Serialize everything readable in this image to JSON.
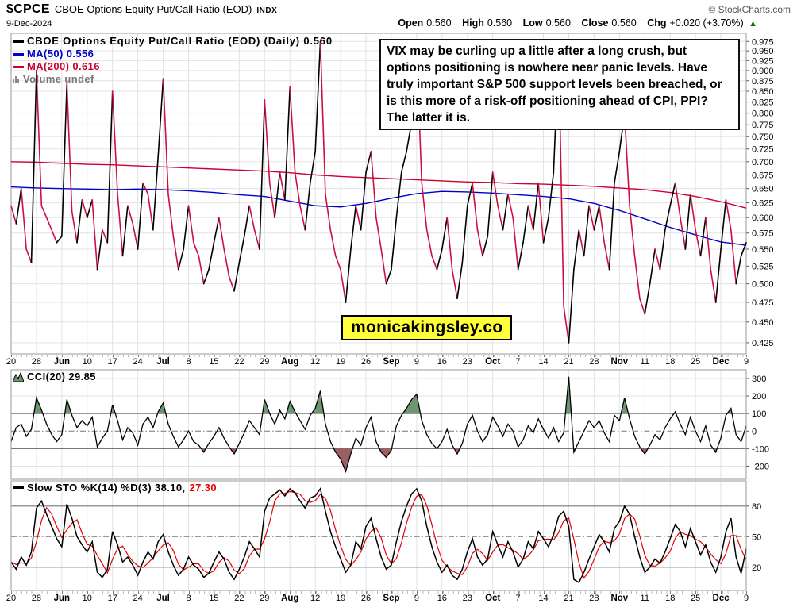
{
  "header": {
    "symbol": "$CPCE",
    "title": "CBOE Options Equity Put/Call Ratio (EOD)",
    "exchange": "INDX",
    "date": "9-Dec-2024",
    "copyright": "© StockCharts.com",
    "quote": {
      "open_label": "Open",
      "open_value": "0.560",
      "high_label": "High",
      "high_value": "0.560",
      "low_label": "Low",
      "low_value": "0.560",
      "close_label": "Close",
      "close_value": "0.560",
      "chg_label": "Chg",
      "chg_value": "+0.020 (+3.70%)",
      "arrow": "▲"
    }
  },
  "main_panel": {
    "legend_price": "CBOE Options Equity Put/Call Ratio (EOD) (Daily) 0.560",
    "legend_ma50": "MA(50) 0.556",
    "legend_ma200": "MA(200) 0.616",
    "legend_volume": "Volume undef",
    "annotation": "VIX may be curling up a little after a long crush, but options positioning is nowhere near panic levels. Have truly important S&P 500 support levels been breached, or is this more of a risk-off positioning ahead of CPI, PPI? The latter it is.",
    "watermark": "monicakingsley.co"
  },
  "cci_panel": {
    "legend": "CCI(20) 29.85"
  },
  "sto_panel": {
    "legend_black": "Slow STO %K(14) %D(3) 38.10,",
    "legend_red": "27.30"
  },
  "chart_data": [
    {
      "type": "line",
      "title": "CBOE Options Equity Put/Call Ratio (EOD) (Daily)",
      "last": 0.56,
      "scale": "log",
      "ylim": [
        0.425,
        0.975
      ],
      "ytick_step": 0.025,
      "x_labels": [
        "20",
        "28",
        "Jun",
        "10",
        "17",
        "24",
        "Jul",
        "8",
        "15",
        "22",
        "29",
        "Aug",
        "12",
        "19",
        "26",
        "Sep",
        "9",
        "16",
        "23",
        "Oct",
        "7",
        "14",
        "21",
        "28",
        "Nov",
        "11",
        "18",
        "25",
        "Dec",
        "9"
      ],
      "colors": {
        "up": "#000000",
        "down": "#cc0f3f",
        "ma50": "#0000cc",
        "ma200": "#cc0033",
        "grid": "#e3e3e3",
        "border": "#999999"
      },
      "price": [
        0.62,
        0.59,
        0.65,
        0.55,
        0.53,
        0.9,
        0.62,
        0.6,
        0.58,
        0.56,
        0.57,
        0.87,
        0.61,
        0.56,
        0.63,
        0.6,
        0.63,
        0.52,
        0.58,
        0.56,
        0.85,
        0.64,
        0.54,
        0.62,
        0.59,
        0.55,
        0.66,
        0.64,
        0.58,
        0.71,
        0.88,
        0.64,
        0.57,
        0.52,
        0.55,
        0.62,
        0.56,
        0.54,
        0.5,
        0.52,
        0.56,
        0.6,
        0.55,
        0.51,
        0.49,
        0.53,
        0.57,
        0.62,
        0.58,
        0.55,
        0.83,
        0.66,
        0.6,
        0.68,
        0.63,
        0.86,
        0.68,
        0.62,
        0.58,
        0.66,
        0.72,
        0.975,
        0.64,
        0.58,
        0.54,
        0.52,
        0.475,
        0.55,
        0.62,
        0.58,
        0.68,
        0.72,
        0.6,
        0.55,
        0.5,
        0.52,
        0.6,
        0.68,
        0.72,
        0.78,
        0.95,
        0.66,
        0.58,
        0.54,
        0.52,
        0.55,
        0.6,
        0.52,
        0.48,
        0.53,
        0.62,
        0.66,
        0.58,
        0.54,
        0.57,
        0.68,
        0.62,
        0.58,
        0.64,
        0.6,
        0.52,
        0.56,
        0.62,
        0.58,
        0.66,
        0.56,
        0.6,
        0.68,
        0.95,
        0.47,
        0.425,
        0.52,
        0.58,
        0.54,
        0.62,
        0.58,
        0.62,
        0.56,
        0.52,
        0.66,
        0.72,
        0.8,
        0.62,
        0.54,
        0.48,
        0.46,
        0.5,
        0.55,
        0.52,
        0.58,
        0.62,
        0.66,
        0.6,
        0.55,
        0.64,
        0.58,
        0.54,
        0.6,
        0.52,
        0.475,
        0.55,
        0.63,
        0.58,
        0.5,
        0.54,
        0.56
      ],
      "ma50_anchors": {
        "i": [
          0,
          5,
          10,
          15,
          20,
          25,
          30,
          35,
          40,
          45,
          50,
          55,
          60,
          65,
          70,
          75,
          80,
          85,
          90,
          95,
          100,
          105,
          110,
          115,
          120,
          125,
          130,
          135,
          140,
          145
        ],
        "v": [
          0.653,
          0.651,
          0.65,
          0.649,
          0.648,
          0.649,
          0.648,
          0.646,
          0.643,
          0.639,
          0.636,
          0.628,
          0.62,
          0.618,
          0.624,
          0.633,
          0.641,
          0.645,
          0.644,
          0.642,
          0.639,
          0.636,
          0.632,
          0.624,
          0.612,
          0.598,
          0.584,
          0.572,
          0.561,
          0.556
        ]
      },
      "ma200_anchors": {
        "i": [
          0,
          5,
          10,
          15,
          20,
          25,
          30,
          35,
          40,
          45,
          50,
          55,
          60,
          65,
          70,
          75,
          80,
          85,
          90,
          95,
          100,
          105,
          110,
          115,
          120,
          125,
          130,
          135,
          140,
          145
        ],
        "v": [
          0.7,
          0.699,
          0.697,
          0.695,
          0.694,
          0.692,
          0.69,
          0.688,
          0.686,
          0.684,
          0.682,
          0.679,
          0.675,
          0.672,
          0.67,
          0.668,
          0.666,
          0.664,
          0.662,
          0.661,
          0.659,
          0.658,
          0.656,
          0.654,
          0.651,
          0.648,
          0.643,
          0.636,
          0.627,
          0.616
        ]
      }
    },
    {
      "type": "line",
      "title": "CCI(20)",
      "last": 29.85,
      "ylim": [
        -270,
        345
      ],
      "yticks": [
        300,
        200,
        100,
        0,
        -100,
        -200
      ],
      "overbought": 100,
      "oversold": -100,
      "colors": {
        "line": "#000000",
        "fill_above": "#6d9770",
        "fill_below": "#9c5f63",
        "grid": "#e3e3e3",
        "threshold": "#777777"
      },
      "values": [
        -60,
        20,
        40,
        -30,
        10,
        190,
        120,
        40,
        -20,
        -60,
        -20,
        180,
        90,
        20,
        60,
        30,
        80,
        -90,
        -40,
        0,
        150,
        60,
        -50,
        20,
        -10,
        -80,
        40,
        80,
        20,
        110,
        160,
        40,
        -30,
        -90,
        -50,
        0,
        -60,
        -80,
        -120,
        -70,
        -30,
        20,
        -40,
        -90,
        -130,
        -70,
        -10,
        60,
        20,
        -20,
        180,
        100,
        40,
        120,
        70,
        170,
        110,
        60,
        10,
        90,
        130,
        230,
        40,
        -60,
        -120,
        -160,
        -230,
        -130,
        -40,
        -80,
        20,
        80,
        -60,
        -120,
        -150,
        -110,
        30,
        90,
        130,
        180,
        210,
        60,
        -20,
        -70,
        -100,
        -60,
        10,
        -80,
        -130,
        -70,
        40,
        90,
        0,
        -60,
        -20,
        80,
        30,
        -30,
        40,
        0,
        -90,
        -50,
        30,
        -10,
        70,
        10,
        -40,
        20,
        -60,
        -10,
        310,
        -120,
        -60,
        0,
        60,
        20,
        60,
        -10,
        -60,
        90,
        60,
        190,
        70,
        -30,
        -90,
        -130,
        -80,
        -20,
        -50,
        20,
        70,
        110,
        40,
        -20,
        80,
        0,
        -60,
        30,
        -80,
        -120,
        -40,
        90,
        130,
        -20,
        -60,
        29.85
      ]
    },
    {
      "type": "line",
      "title": "Slow STO %K(14) %D(3)",
      "k_last": 38.1,
      "d_last": 27.3,
      "ylim": [
        0,
        100
      ],
      "yticks": [
        80,
        50,
        20
      ],
      "d_smoothing": 3,
      "colors": {
        "k": "#000000",
        "d": "#e60000",
        "grid": "#e3e3e3",
        "threshold": "#777777"
      },
      "k": [
        25,
        18,
        30,
        22,
        35,
        78,
        85,
        72,
        60,
        48,
        40,
        82,
        68,
        50,
        42,
        35,
        45,
        15,
        10,
        18,
        55,
        42,
        25,
        30,
        22,
        12,
        25,
        35,
        28,
        45,
        52,
        35,
        22,
        12,
        18,
        30,
        22,
        18,
        10,
        14,
        25,
        35,
        28,
        15,
        8,
        18,
        30,
        45,
        38,
        30,
        75,
        88,
        92,
        96,
        90,
        97,
        93,
        85,
        78,
        88,
        90,
        97,
        75,
        55,
        40,
        28,
        15,
        22,
        45,
        38,
        60,
        68,
        48,
        30,
        18,
        22,
        45,
        65,
        80,
        92,
        97,
        85,
        60,
        40,
        25,
        15,
        22,
        12,
        8,
        18,
        35,
        48,
        30,
        22,
        28,
        55,
        42,
        30,
        45,
        35,
        20,
        28,
        45,
        38,
        55,
        48,
        40,
        52,
        70,
        75,
        60,
        8,
        5,
        15,
        28,
        40,
        52,
        45,
        35,
        58,
        65,
        80,
        72,
        50,
        30,
        15,
        20,
        28,
        24,
        35,
        48,
        62,
        55,
        40,
        58,
        45,
        32,
        42,
        25,
        15,
        30,
        55,
        68,
        30,
        14,
        38.1
      ]
    }
  ]
}
